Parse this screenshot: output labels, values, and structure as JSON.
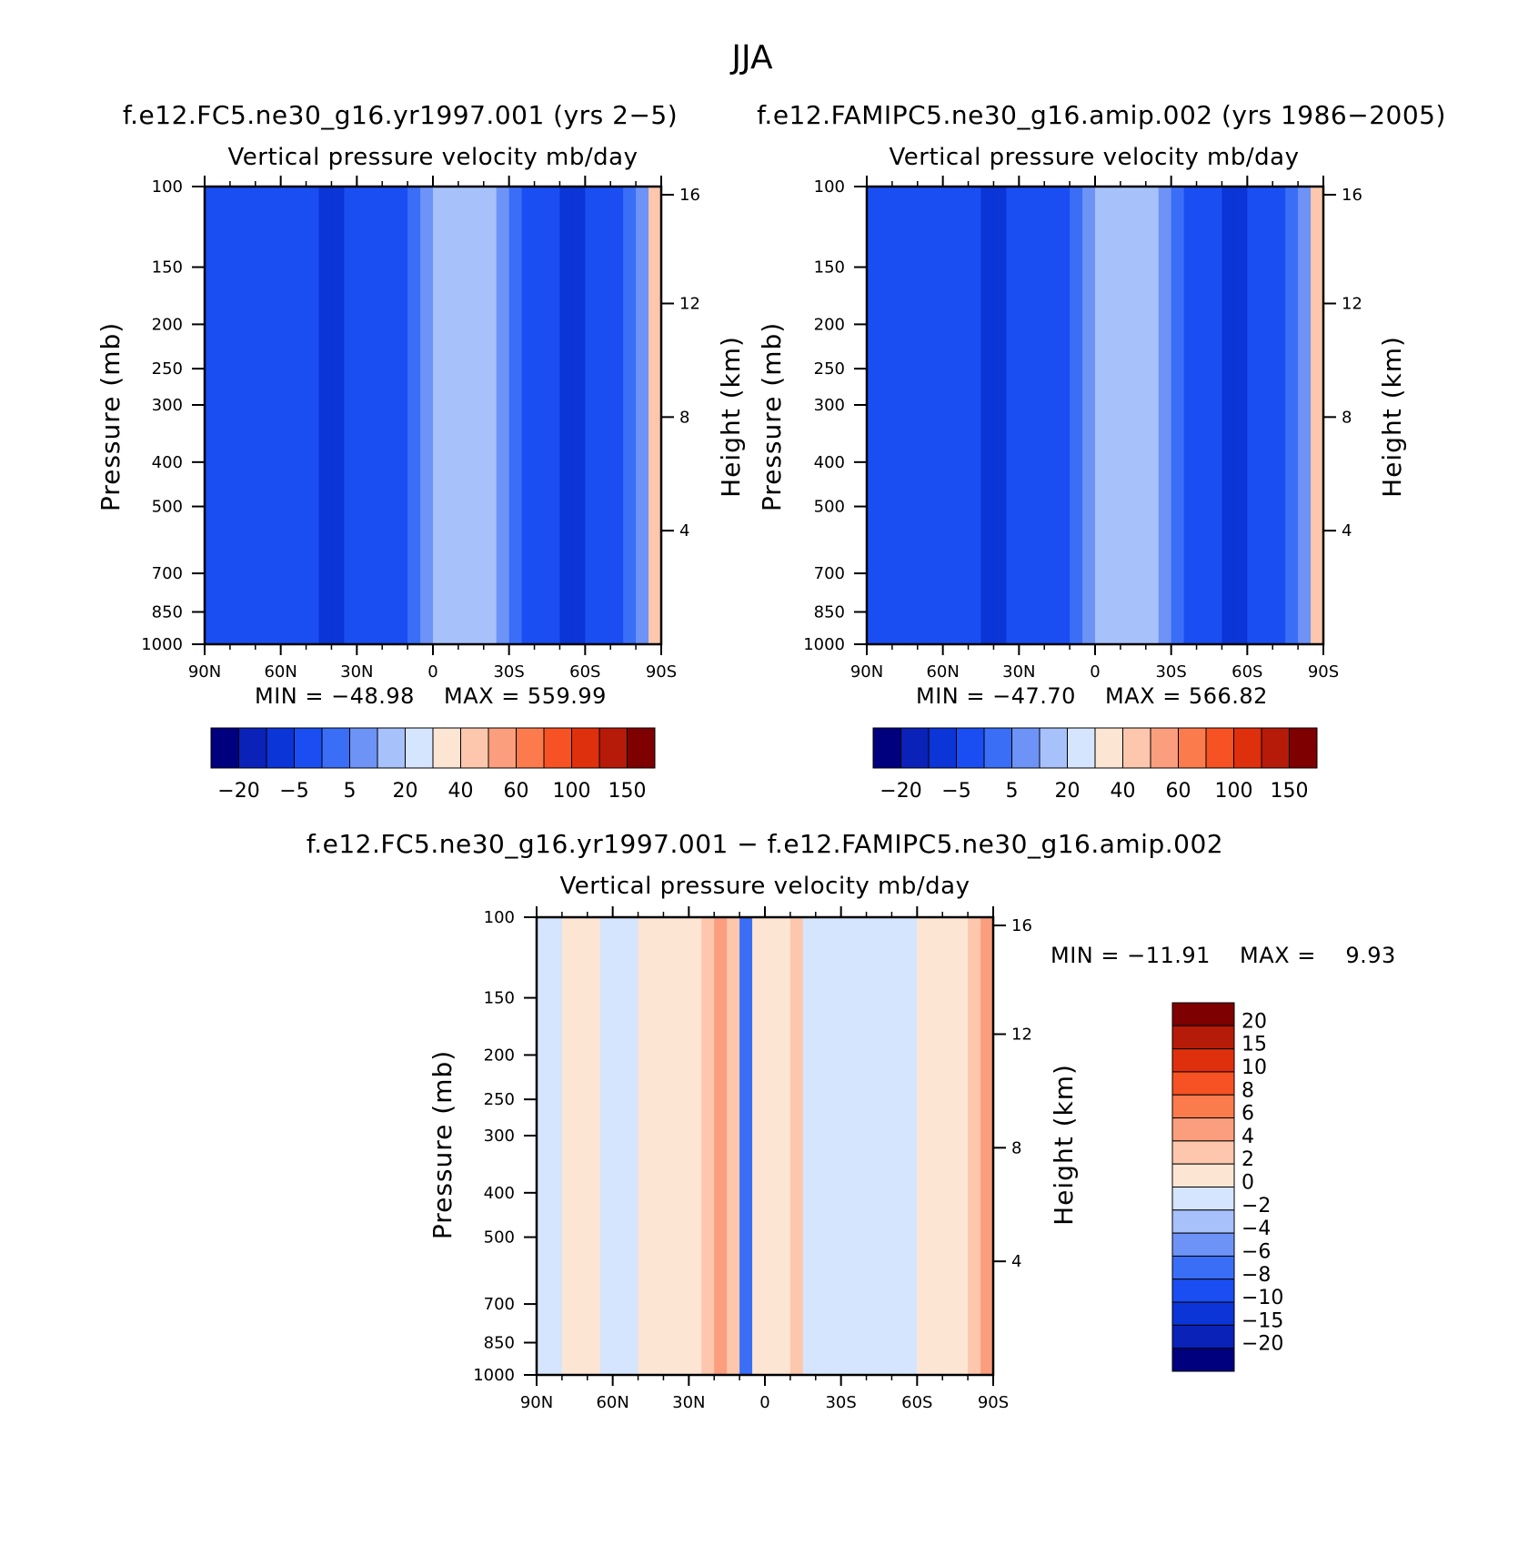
{
  "figure": {
    "title": "JJA"
  },
  "chart_data": [
    {
      "type": "heatmap",
      "title": "f.e12.FC5.ne30_g16.yr1997.001 (yrs 2−5)",
      "subtitle": "Vertical pressure velocity   mb/day",
      "xlabel": "",
      "ylabel": "Pressure (mb)",
      "ylabel_right": "Height (km)",
      "x_ticks": [
        "90N",
        "60N",
        "30N",
        "0",
        "30S",
        "60S",
        "90S"
      ],
      "y_ticks": [
        "100",
        "150",
        "200",
        "250",
        "300",
        "400",
        "500",
        "700",
        "850",
        "1000"
      ],
      "y_ticks_right": [
        "16",
        "12",
        "8",
        "4"
      ],
      "ylim": [
        1000,
        100
      ],
      "y_scale": "log",
      "min_label": "MIN = −48.98",
      "max_label": "MAX = 559.99",
      "colorbar_ticks": [
        "−20",
        "−5",
        "5",
        "20",
        "40",
        "60",
        "100",
        "150"
      ],
      "colorbar_levels": [
        -20,
        -10,
        -5,
        0,
        5,
        10,
        20,
        30,
        40,
        50,
        60,
        80,
        100,
        120,
        150
      ],
      "columns": [
        -3,
        -3,
        -3,
        -4,
        -4,
        -3,
        -3,
        -4,
        -5,
        -6,
        -6,
        -5,
        -3,
        -3,
        -2,
        -1,
        1,
        5,
        10,
        14,
        15,
        14,
        10,
        6,
        2,
        -1,
        -3,
        -4,
        -6,
        -7,
        -5,
        -3,
        -1,
        3,
        8,
        40
      ]
    },
    {
      "type": "heatmap",
      "title": "f.e12.FAMIPC5.ne30_g16.amip.002 (yrs 1986−2005)",
      "subtitle": "Vertical pressure velocity   mb/day",
      "xlabel": "",
      "ylabel": "Pressure (mb)",
      "ylabel_right": "Height (km)",
      "x_ticks": [
        "90N",
        "60N",
        "30N",
        "0",
        "30S",
        "60S",
        "90S"
      ],
      "y_ticks": [
        "100",
        "150",
        "200",
        "250",
        "300",
        "400",
        "500",
        "700",
        "850",
        "1000"
      ],
      "y_ticks_right": [
        "16",
        "12",
        "8",
        "4"
      ],
      "ylim": [
        1000,
        100
      ],
      "y_scale": "log",
      "min_label": "MIN = −47.70",
      "max_label": "MAX = 566.82",
      "colorbar_ticks": [
        "−20",
        "−5",
        "5",
        "20",
        "40",
        "60",
        "100",
        "150"
      ],
      "colorbar_levels": [
        -20,
        -10,
        -5,
        0,
        5,
        10,
        20,
        30,
        40,
        50,
        60,
        80,
        100,
        120,
        150
      ],
      "columns": [
        -3,
        -3,
        -3,
        -4,
        -4,
        -3,
        -3,
        -4,
        -5,
        -6,
        -6,
        -5,
        -3,
        -3,
        -2,
        -1,
        1,
        5,
        10,
        14,
        15,
        14,
        10,
        6,
        2,
        -1,
        -3,
        -4,
        -6,
        -7,
        -5,
        -3,
        -1,
        3,
        8,
        40
      ]
    },
    {
      "type": "heatmap",
      "title": "f.e12.FC5.ne30_g16.yr1997.001 − f.e12.FAMIPC5.ne30_g16.amip.002",
      "subtitle": "Vertical pressure velocity   mb/day",
      "xlabel": "",
      "ylabel": "Pressure (mb)",
      "ylabel_right": "Height (km)",
      "x_ticks": [
        "90N",
        "60N",
        "30N",
        "0",
        "30S",
        "60S",
        "90S"
      ],
      "y_ticks": [
        "100",
        "150",
        "200",
        "250",
        "300",
        "400",
        "500",
        "700",
        "850",
        "1000"
      ],
      "y_ticks_right": [
        "16",
        "12",
        "8",
        "4"
      ],
      "ylim": [
        1000,
        100
      ],
      "y_scale": "log",
      "min_label": "MIN = −11.91",
      "max_label": "MAX =    9.93",
      "colorbar_ticks": [
        "20",
        "15",
        "10",
        "8",
        "6",
        "4",
        "2",
        "0",
        "−2",
        "−4",
        "−6",
        "−8",
        "−10",
        "−15",
        "−20"
      ],
      "colorbar_levels": [
        -20,
        -15,
        -10,
        -8,
        -6,
        -4,
        -2,
        0,
        2,
        4,
        6,
        8,
        10,
        15,
        20
      ],
      "columns": [
        -1,
        -1,
        1,
        1,
        1,
        -1,
        -1,
        -1,
        1,
        1,
        1,
        1,
        1,
        3,
        4,
        2,
        -8,
        1,
        1,
        1,
        2,
        -1,
        -1,
        -1,
        -1,
        -1,
        -2,
        -1,
        -1,
        -1,
        1,
        1,
        1,
        1,
        2,
        4
      ]
    }
  ],
  "colors": {
    "palette": [
      "#00007f",
      "#0a22b8",
      "#0b35d6",
      "#1a4ef2",
      "#3a6ef7",
      "#6d93f7",
      "#a7c1fb",
      "#d5e5fd",
      "#fde5d3",
      "#fcc7ac",
      "#fb9e7d",
      "#fb7b4d",
      "#f65223",
      "#df300d",
      "#b51b08",
      "#7f0000"
    ]
  }
}
